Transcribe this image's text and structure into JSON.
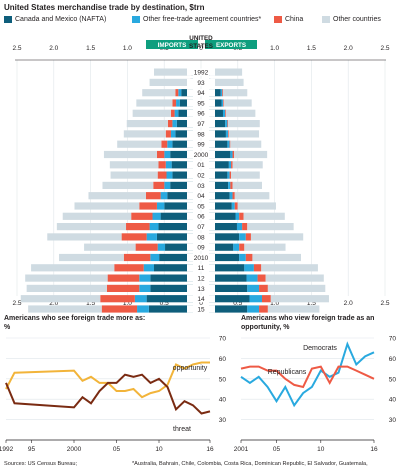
{
  "title": "United States merchandise trade by destination, $trn",
  "legend": [
    {
      "label": "Canada and Mexico (NAFTA)",
      "color": "#0e5e7b"
    },
    {
      "label": "Other free-trade agreement countries*",
      "color": "#29a9df"
    },
    {
      "label": "China",
      "color": "#ee5a45"
    },
    {
      "label": "Other countries",
      "color": "#cfdbe2"
    }
  ],
  "center": {
    "imports": "IMPORTS",
    "us": "UNITED STATES",
    "exports": "EXPORTS"
  },
  "year_labels": [
    "1992",
    "93",
    "94",
    "95",
    "96",
    "97",
    "98",
    "99",
    "2000",
    "01",
    "02",
    "03",
    "04",
    "05",
    "06",
    "07",
    "08",
    "09",
    "2010",
    "11",
    "12",
    "13",
    "14",
    "15"
  ],
  "axis_ticks": [
    "2.5",
    "2.0",
    "1.5",
    "1.0",
    "0.5",
    "0",
    "0.5",
    "1.0",
    "1.5",
    "2.0",
    "2.5"
  ],
  "chart_data": [
    {
      "type": "bar",
      "title": "United States merchandise trade by destination, $trn",
      "categories": [
        "1992",
        "1993",
        "1994",
        "1995",
        "1996",
        "1997",
        "1998",
        "1999",
        "2000",
        "2001",
        "2002",
        "2003",
        "2004",
        "2005",
        "2006",
        "2007",
        "2008",
        "2009",
        "2010",
        "2011",
        "2012",
        "2013",
        "2014",
        "2015"
      ],
      "xlim": [
        -2.5,
        2.5
      ],
      "grid": true,
      "legend_position": "top",
      "imports": {
        "series": [
          {
            "name": "Canada and Mexico (NAFTA)",
            "values": [
              0.02,
              0.03,
              0.16,
              0.18,
              0.2,
              0.22,
              0.24,
              0.28,
              0.31,
              0.29,
              0.28,
              0.31,
              0.35,
              0.39,
              0.44,
              0.47,
              0.49,
              0.38,
              0.46,
              0.53,
              0.58,
              0.58,
              0.63,
              0.6
            ]
          },
          {
            "name": "Other free-trade agreement countries*",
            "values": [
              0,
              0,
              0.04,
              0.05,
              0.05,
              0.06,
              0.06,
              0.07,
              0.08,
              0.08,
              0.08,
              0.08,
              0.09,
              0.1,
              0.11,
              0.12,
              0.14,
              0.1,
              0.12,
              0.14,
              0.15,
              0.15,
              0.16,
              0.16
            ]
          },
          {
            "name": "China",
            "values": [
              0.01,
              0.01,
              0.04,
              0.05,
              0.05,
              0.06,
              0.07,
              0.08,
              0.1,
              0.1,
              0.12,
              0.15,
              0.2,
              0.24,
              0.29,
              0.32,
              0.34,
              0.3,
              0.36,
              0.4,
              0.43,
              0.44,
              0.47,
              0.48
            ]
          },
          {
            "name": "Other countries",
            "values": [
              0.5,
              0.55,
              0.45,
              0.49,
              0.52,
              0.56,
              0.57,
              0.6,
              0.72,
              0.66,
              0.64,
              0.69,
              0.78,
              0.88,
              0.93,
              0.94,
              1.01,
              0.7,
              0.88,
              1.13,
              1.12,
              1.09,
              1.08,
              1.0
            ]
          }
        ]
      },
      "exports": {
        "series": [
          {
            "name": "Canada and Mexico (NAFTA)",
            "values": [
              0.01,
              0.02,
              0.16,
              0.17,
              0.19,
              0.22,
              0.23,
              0.25,
              0.29,
              0.27,
              0.25,
              0.26,
              0.28,
              0.31,
              0.36,
              0.38,
              0.41,
              0.33,
              0.41,
              0.48,
              0.51,
              0.52,
              0.55,
              0.52
            ]
          },
          {
            "name": "Other free-trade agreement countries*",
            "values": [
              0,
              0,
              0.02,
              0.02,
              0.03,
              0.03,
              0.03,
              0.03,
              0.03,
              0.03,
              0.03,
              0.03,
              0.04,
              0.04,
              0.05,
              0.07,
              0.09,
              0.08,
              0.09,
              0.13,
              0.15,
              0.16,
              0.17,
              0.16
            ]
          },
          {
            "name": "China",
            "values": [
              0,
              0,
              0.01,
              0.01,
              0.01,
              0.01,
              0.01,
              0.01,
              0.02,
              0.02,
              0.02,
              0.03,
              0.03,
              0.04,
              0.06,
              0.07,
              0.07,
              0.07,
              0.09,
              0.1,
              0.11,
              0.12,
              0.12,
              0.12
            ]
          },
          {
            "name": "Other countries",
            "values": [
              0.44,
              0.45,
              0.33,
              0.38,
              0.4,
              0.43,
              0.41,
              0.42,
              0.45,
              0.41,
              0.39,
              0.4,
              0.47,
              0.52,
              0.56,
              0.63,
              0.71,
              0.56,
              0.66,
              0.77,
              0.79,
              0.78,
              0.79,
              0.7
            ]
          }
        ]
      }
    },
    {
      "type": "line",
      "title": "Americans who see foreign trade more as:",
      "ylabel": "%",
      "x": [
        1992,
        1993,
        2000,
        2001,
        2002,
        2003,
        2004,
        2005,
        2006,
        2007,
        2008,
        2009,
        2010,
        2011,
        2012,
        2013,
        2014,
        2015,
        2016
      ],
      "ylim": [
        20,
        70
      ],
      "yticks": [
        30,
        40,
        50,
        60,
        70
      ],
      "xticks": [
        "1992",
        "95",
        "2000",
        "05",
        "10",
        "16"
      ],
      "series": [
        {
          "name": "opportunity",
          "values": [
            45,
            53,
            54,
            49,
            51,
            48,
            48,
            44,
            44,
            45,
            41,
            43,
            44,
            47,
            57,
            55,
            57,
            58,
            58
          ]
        },
        {
          "name": "threat",
          "values": [
            48,
            38,
            36,
            41,
            38,
            44,
            48,
            48,
            52,
            51,
            52,
            48,
            50,
            46,
            35,
            39,
            37,
            33,
            34
          ]
        }
      ]
    },
    {
      "type": "line",
      "title": "Americans who view foreign trade as an opportunity,",
      "ylabel": "%",
      "x": [
        2001,
        2002,
        2003,
        2004,
        2005,
        2006,
        2007,
        2008,
        2009,
        2010,
        2011,
        2012,
        2013,
        2014,
        2015,
        2016
      ],
      "ylim": [
        20,
        70
      ],
      "yticks": [
        30,
        40,
        50,
        60,
        70
      ],
      "xticks": [
        "2001",
        "05",
        "10",
        "16"
      ],
      "series": [
        {
          "name": "Democrats",
          "values": [
            51,
            48,
            51,
            46,
            39,
            46,
            37,
            43,
            46,
            54,
            51,
            53,
            67,
            57,
            61,
            63
          ]
        },
        {
          "name": "Republicans",
          "values": [
            55,
            56,
            56,
            54,
            54,
            50,
            47,
            46,
            55,
            56,
            48,
            56,
            56,
            54,
            52,
            50
          ]
        }
      ]
    }
  ],
  "panel2": {
    "title": "Americans who see foreign trade more as:",
    "unit": "%",
    "opportunity_label": "opportunity",
    "threat_label": "threat",
    "xticks": [
      "1992",
      "95",
      "2000",
      "05",
      "10",
      "16"
    ],
    "yticks": [
      "30",
      "40",
      "50",
      "60",
      "70"
    ]
  },
  "panel3": {
    "title_line1": "Americans who view foreign trade as an",
    "title_line2": "opportunity, %",
    "democrats_label": "Democrats",
    "republicans_label": "Republicans",
    "xticks": [
      "2001",
      "05",
      "10",
      "16"
    ],
    "yticks": [
      "30",
      "40",
      "50",
      "60",
      "70"
    ]
  },
  "footer": {
    "source": "Sources: US Census Bureau;",
    "note": "*Australia, Bahrain, Chile, Colombia, Costa Rica, Dominican Republic, El Salvador, Guatemala,"
  }
}
